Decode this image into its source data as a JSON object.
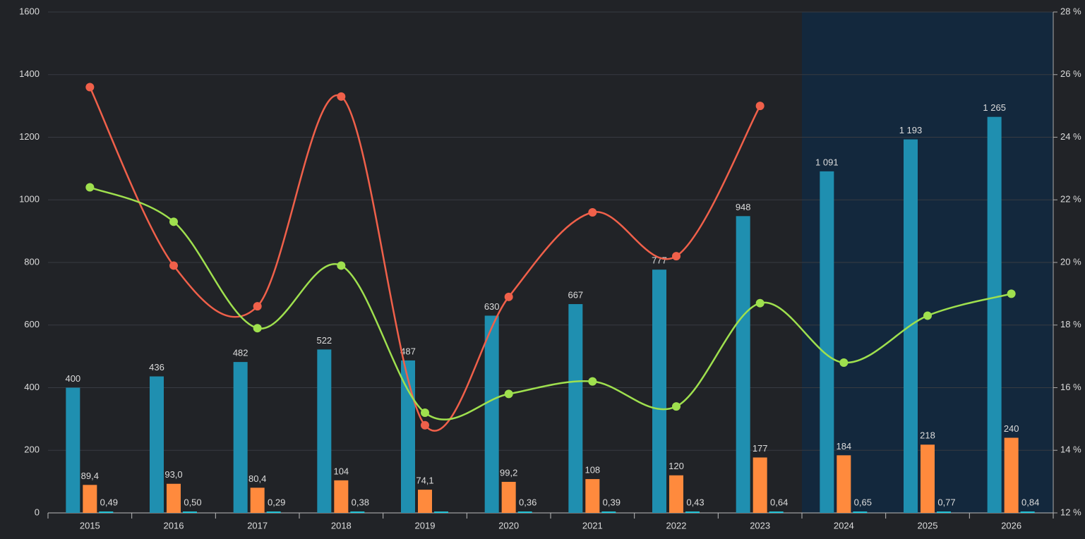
{
  "chart_data": {
    "type": "bar",
    "categories": [
      "2015",
      "2016",
      "2017",
      "2018",
      "2019",
      "2020",
      "2021",
      "2022",
      "2023",
      "2024",
      "2025",
      "2026"
    ],
    "series": [
      {
        "color": "#1f8fb0",
        "values": [
          400,
          436,
          482,
          522,
          487,
          630,
          667,
          777,
          948,
          1091,
          1193,
          1265
        ],
        "value_labels": [
          "400",
          "436",
          "482",
          "522",
          "487",
          "630",
          "667",
          "777",
          "948",
          "1 091",
          "1 193",
          "1 265"
        ]
      },
      {
        "color": "#ff8a3d",
        "values": [
          89.4,
          93.0,
          80.4,
          104,
          74.1,
          99.2,
          108,
          120,
          177,
          184,
          218,
          240
        ],
        "value_labels": [
          "89,4",
          "93,0",
          "80,4",
          "104",
          "74,1",
          "99,2",
          "108",
          "120",
          "177",
          "184",
          "218",
          "240"
        ]
      },
      {
        "color": "#22c3d6",
        "values": [
          0.49,
          0.5,
          0.29,
          0.38,
          0.33,
          0.36,
          0.39,
          0.43,
          0.64,
          0.65,
          0.77,
          0.84
        ],
        "value_labels": [
          "0,49",
          "0,50",
          "0,29",
          "0,38",
          null,
          "0,36",
          "0,39",
          "0,43",
          "0,64",
          "0,65",
          "0,77",
          "0,84"
        ]
      },
      {
        "type": "line",
        "axis": "y2",
        "color": "#f0604a",
        "values": [
          25.6,
          19.9,
          18.6,
          25.3,
          14.8,
          18.9,
          21.6,
          20.2,
          25.0,
          null,
          null,
          null
        ]
      },
      {
        "type": "line",
        "axis": "y2",
        "color": "#9fe04e",
        "values": [
          22.4,
          21.3,
          17.9,
          19.9,
          15.2,
          15.8,
          16.2,
          15.4,
          18.7,
          16.8,
          18.3,
          19.0
        ]
      }
    ],
    "ylim": [
      0,
      1600
    ],
    "yticks": [
      0,
      200,
      400,
      600,
      800,
      1000,
      1200,
      1400,
      1600
    ],
    "y2lim": [
      12,
      28
    ],
    "y2ticks": [
      {
        "value": 12,
        "label": "12 %"
      },
      {
        "value": 14,
        "label": "14 %"
      },
      {
        "value": 16,
        "label": "16 %"
      },
      {
        "value": 18,
        "label": "18 %"
      },
      {
        "value": 20,
        "label": "20 %"
      },
      {
        "value": 22,
        "label": "22 %"
      },
      {
        "value": 24,
        "label": "24 %"
      },
      {
        "value": 26,
        "label": "26 %"
      },
      {
        "value": 28,
        "label": "28 %"
      }
    ],
    "grid": true,
    "highlight": {
      "from": "2024",
      "color": "#13283d"
    }
  }
}
